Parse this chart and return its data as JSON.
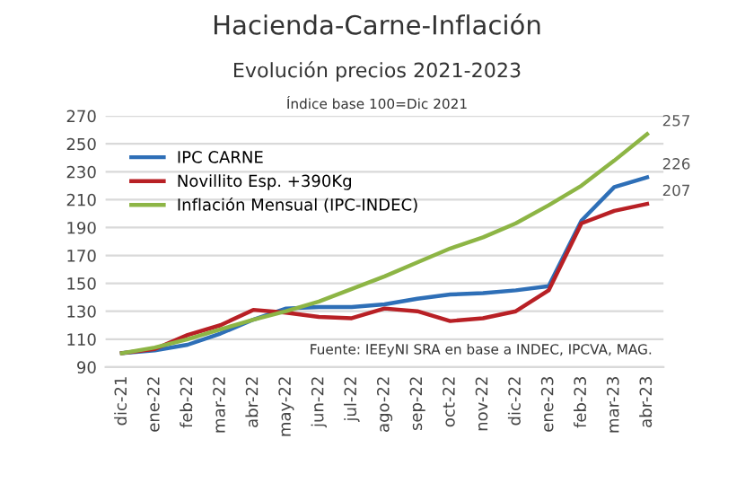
{
  "chart_data": {
    "type": "line",
    "title": "Hacienda-Carne-Inflación",
    "subtitle": "Evolución precios 2021-2023",
    "annotations": [
      "Índice base 100=Dic 2021",
      "Fuente: IEEyNI SRA en base a INDEC, IPCVA, MAG."
    ],
    "categories": [
      "dic-21",
      "ene-22",
      "feb-22",
      "mar-22",
      "abr-22",
      "may-22",
      "jun-22",
      "jul-22",
      "ago-22",
      "sep-22",
      "oct-22",
      "nov-22",
      "dic-22",
      "ene-23",
      "feb-23",
      "mar-23",
      "abr-23"
    ],
    "series": [
      {
        "name": "IPC CARNE",
        "color": "#2e6fb7",
        "values": [
          100,
          102,
          106,
          114,
          124,
          132,
          133,
          133,
          135,
          139,
          142,
          143,
          145,
          148,
          195,
          219,
          226
        ],
        "value_labels": [
          null,
          null,
          null,
          null,
          null,
          null,
          null,
          null,
          null,
          null,
          null,
          null,
          null,
          null,
          null,
          null,
          "226"
        ]
      },
      {
        "name": "Novillito Esp. +390Kg",
        "color": "#b82025",
        "values": [
          100,
          103,
          113,
          120,
          131,
          129,
          126,
          125,
          132,
          130,
          123,
          125,
          130,
          145,
          193,
          202,
          207
        ],
        "value_labels": [
          null,
          null,
          null,
          null,
          null,
          null,
          null,
          null,
          null,
          null,
          null,
          null,
          null,
          null,
          null,
          null,
          "207"
        ]
      },
      {
        "name": "Inflación Mensual (IPC-INDEC)",
        "color": "#8db545",
        "values": [
          100,
          104,
          110,
          117,
          124,
          130,
          137,
          146,
          155,
          165,
          175,
          183,
          193,
          206,
          220,
          238,
          257
        ],
        "value_labels": [
          null,
          null,
          null,
          null,
          null,
          null,
          null,
          null,
          null,
          null,
          null,
          null,
          null,
          null,
          null,
          null,
          "257"
        ]
      }
    ],
    "ylim": [
      90,
      270
    ],
    "yticks": [
      90,
      110,
      130,
      150,
      170,
      190,
      210,
      230,
      250,
      270
    ],
    "grid": "y",
    "legend": "top left",
    "marker": "none",
    "line_style": "solid"
  }
}
